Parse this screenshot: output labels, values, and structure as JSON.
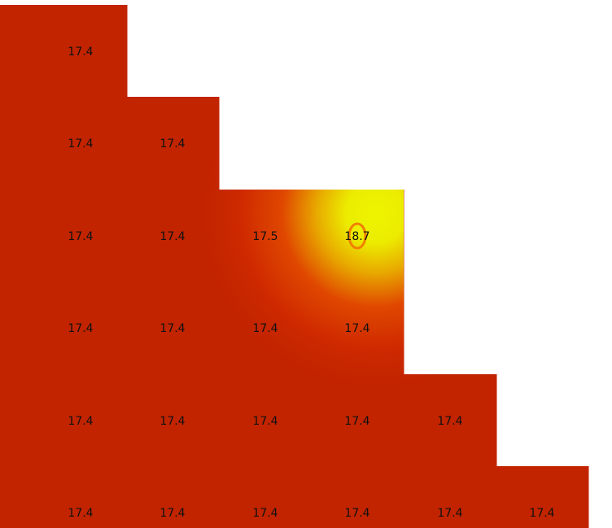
{
  "chart_data": {
    "type": "heatmap",
    "title": "",
    "xlabel": "",
    "ylabel": "",
    "grid_rows": 6,
    "grid_cols": 6,
    "layout": "lower-triangular",
    "cells": [
      {
        "row": 0,
        "col": 0,
        "value": 17.4,
        "label": "17.4"
      },
      {
        "row": 1,
        "col": 0,
        "value": 17.4,
        "label": "17.4"
      },
      {
        "row": 1,
        "col": 1,
        "value": 17.4,
        "label": "17.4"
      },
      {
        "row": 2,
        "col": 0,
        "value": 17.4,
        "label": "17.4"
      },
      {
        "row": 2,
        "col": 1,
        "value": 17.4,
        "label": "17.4"
      },
      {
        "row": 2,
        "col": 2,
        "value": 17.5,
        "label": "17.5"
      },
      {
        "row": 2,
        "col": 3,
        "value": 18.7,
        "label": "18.7"
      },
      {
        "row": 3,
        "col": 0,
        "value": 17.4,
        "label": "17.4"
      },
      {
        "row": 3,
        "col": 1,
        "value": 17.4,
        "label": "17.4"
      },
      {
        "row": 3,
        "col": 2,
        "value": 17.4,
        "label": "17.4"
      },
      {
        "row": 3,
        "col": 3,
        "value": 17.4,
        "label": "17.4"
      },
      {
        "row": 4,
        "col": 0,
        "value": 17.4,
        "label": "17.4"
      },
      {
        "row": 4,
        "col": 1,
        "value": 17.4,
        "label": "17.4"
      },
      {
        "row": 4,
        "col": 2,
        "value": 17.4,
        "label": "17.4"
      },
      {
        "row": 4,
        "col": 3,
        "value": 17.4,
        "label": "17.4"
      },
      {
        "row": 4,
        "col": 4,
        "value": 17.4,
        "label": "17.4"
      },
      {
        "row": 5,
        "col": 0,
        "value": 17.4,
        "label": "17.4"
      },
      {
        "row": 5,
        "col": 1,
        "value": 17.4,
        "label": "17.4"
      },
      {
        "row": 5,
        "col": 2,
        "value": 17.4,
        "label": "17.4"
      },
      {
        "row": 5,
        "col": 3,
        "value": 17.4,
        "label": "17.4"
      },
      {
        "row": 5,
        "col": 4,
        "value": 17.4,
        "label": "17.4"
      },
      {
        "row": 5,
        "col": 5,
        "value": 17.4,
        "label": "17.4"
      }
    ],
    "highlighted_cell": {
      "row": 2,
      "col": 3,
      "marker": "circle"
    },
    "color_scale": [
      "#c22400",
      "#e03200",
      "#eeb800",
      "#eef500"
    ],
    "legend": "none",
    "grid": false
  }
}
